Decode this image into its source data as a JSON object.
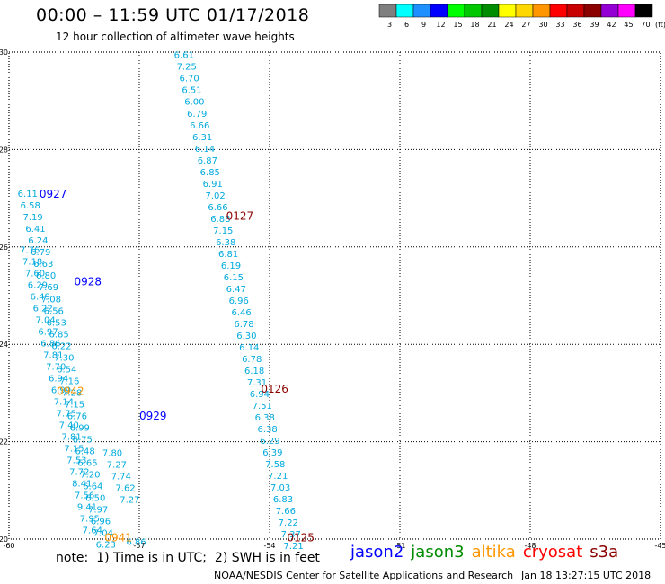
{
  "header": {
    "title": "00:00 – 11:59 UTC 01/17/2018",
    "subtitle": "12 hour collection of altimeter wave heights"
  },
  "colorbar": {
    "bins": [
      {
        "label": "3",
        "color": "#7f7f7f"
      },
      {
        "label": "6",
        "color": "#00ffff"
      },
      {
        "label": "9",
        "color": "#1e90ff"
      },
      {
        "label": "12",
        "color": "#0000ff"
      },
      {
        "label": "15",
        "color": "#00ff00"
      },
      {
        "label": "18",
        "color": "#00c800"
      },
      {
        "label": "21",
        "color": "#008c00"
      },
      {
        "label": "24",
        "color": "#ffff00"
      },
      {
        "label": "27",
        "color": "#ffd700"
      },
      {
        "label": "30",
        "color": "#ff9600"
      },
      {
        "label": "33",
        "color": "#ff0000"
      },
      {
        "label": "36",
        "color": "#c80000"
      },
      {
        "label": "39",
        "color": "#8b0000"
      },
      {
        "label": "42",
        "color": "#9400d3"
      },
      {
        "label": "45",
        "color": "#ff00ff"
      },
      {
        "label": "70",
        "color": "#000000"
      }
    ],
    "unit": "(ft)"
  },
  "satellites": [
    {
      "name": "jason2",
      "color": "#0000ff"
    },
    {
      "name": "jason3",
      "color": "#008c00"
    },
    {
      "name": "altika",
      "color": "#ff9600"
    },
    {
      "name": "cryosat",
      "color": "#ff0000"
    },
    {
      "name": "s3a",
      "color": "#8b0000"
    }
  ],
  "footer": {
    "note": "note:  1) Time is in UTC;  2) SWH is in feet",
    "credit": "NOAA/NESDIS Center for Satellite Applications and Research",
    "timestamp": "Jan 18 13:27:15 UTC 2018"
  },
  "chart_data": {
    "type": "scatter",
    "title": "00:00 – 11:59 UTC 01/17/2018",
    "subtitle": "12 hour collection of altimeter wave heights",
    "xlim": [
      -60,
      -45
    ],
    "ylim": [
      20,
      30
    ],
    "x_ticks": [
      -60,
      -57,
      -54,
      -51,
      -48,
      -45
    ],
    "y_ticks": [
      20,
      22,
      24,
      26,
      28,
      30
    ],
    "grid": true,
    "value_color": "#00aadd",
    "tracks": [
      {
        "label": "0125",
        "satellite": "s3a",
        "label_lon": -53.6,
        "label_lat": 20.05,
        "points": [
          {
            "lon": -56.2,
            "lat": 29.95,
            "swh": 6.61
          },
          {
            "lon": -56.14,
            "lat": 29.71,
            "swh": 7.25
          },
          {
            "lon": -56.08,
            "lat": 29.47,
            "swh": 6.7
          },
          {
            "lon": -56.02,
            "lat": 29.23,
            "swh": 6.51
          },
          {
            "lon": -55.96,
            "lat": 28.99,
            "swh": 6.0
          },
          {
            "lon": -55.9,
            "lat": 28.75,
            "swh": 6.79
          },
          {
            "lon": -55.84,
            "lat": 28.51,
            "swh": 6.66
          },
          {
            "lon": -55.78,
            "lat": 28.27,
            "swh": 6.31
          },
          {
            "lon": -55.72,
            "lat": 28.03,
            "swh": 6.14
          },
          {
            "lon": -55.66,
            "lat": 27.79,
            "swh": 6.87
          },
          {
            "lon": -55.6,
            "lat": 27.55,
            "swh": 6.85
          },
          {
            "lon": -55.54,
            "lat": 27.31,
            "swh": 6.91
          },
          {
            "lon": -55.48,
            "lat": 27.07,
            "swh": 7.02
          },
          {
            "lon": -55.42,
            "lat": 26.83,
            "swh": 6.66
          },
          {
            "lon": -55.36,
            "lat": 26.59,
            "swh": 6.88
          },
          {
            "lon": -55.3,
            "lat": 26.35,
            "swh": 7.15
          },
          {
            "lon": -55.24,
            "lat": 26.11,
            "swh": 6.38
          },
          {
            "lon": -55.18,
            "lat": 25.87,
            "swh": 6.81
          },
          {
            "lon": -55.12,
            "lat": 25.63,
            "swh": 6.19
          },
          {
            "lon": -55.06,
            "lat": 25.39,
            "swh": 6.15
          },
          {
            "lon": -55.0,
            "lat": 25.15,
            "swh": 6.47
          },
          {
            "lon": -54.94,
            "lat": 24.91,
            "swh": 6.96
          },
          {
            "lon": -54.88,
            "lat": 24.67,
            "swh": 6.46
          },
          {
            "lon": -54.82,
            "lat": 24.43,
            "swh": 6.78
          },
          {
            "lon": -54.76,
            "lat": 24.19,
            "swh": 6.3
          },
          {
            "lon": -54.7,
            "lat": 23.95,
            "swh": 6.14
          },
          {
            "lon": -54.64,
            "lat": 23.71,
            "swh": 6.78
          },
          {
            "lon": -54.58,
            "lat": 23.47,
            "swh": 6.18
          },
          {
            "lon": -54.52,
            "lat": 23.23,
            "swh": 7.31
          },
          {
            "lon": -54.46,
            "lat": 22.99,
            "swh": 6.94
          },
          {
            "lon": -54.4,
            "lat": 22.75,
            "swh": 7.51
          },
          {
            "lon": -54.34,
            "lat": 22.51,
            "swh": 6.38
          },
          {
            "lon": -54.28,
            "lat": 22.27,
            "swh": 6.38
          },
          {
            "lon": -54.22,
            "lat": 22.03,
            "swh": 6.29
          },
          {
            "lon": -54.16,
            "lat": 21.79,
            "swh": 6.39
          },
          {
            "lon": -54.1,
            "lat": 21.55,
            "swh": 7.58
          },
          {
            "lon": -54.04,
            "lat": 21.31,
            "swh": 7.21
          },
          {
            "lon": -53.98,
            "lat": 21.07,
            "swh": 7.03
          },
          {
            "lon": -53.92,
            "lat": 20.83,
            "swh": 6.83
          },
          {
            "lon": -53.86,
            "lat": 20.59,
            "swh": 7.66
          },
          {
            "lon": -53.8,
            "lat": 20.35,
            "swh": 7.22
          },
          {
            "lon": -53.74,
            "lat": 20.11,
            "swh": 7.37
          },
          {
            "lon": -53.68,
            "lat": 19.87,
            "swh": 7.21
          }
        ]
      },
      {
        "label": "0126",
        "satellite": "s3a",
        "label_lon": -54.2,
        "label_lat": 23.1,
        "points": []
      },
      {
        "label": "0127",
        "satellite": "s3a",
        "label_lon": -55.0,
        "label_lat": 26.65,
        "points": []
      },
      {
        "label": "0927",
        "satellite": "jason2",
        "label_lon": -59.3,
        "label_lat": 27.1,
        "points": [
          {
            "lon": -59.8,
            "lat": 27.1,
            "swh": 6.11
          },
          {
            "lon": -59.74,
            "lat": 26.86,
            "swh": 6.58
          },
          {
            "lon": -59.68,
            "lat": 26.62,
            "swh": 7.19
          },
          {
            "lon": -59.62,
            "lat": 26.38,
            "swh": 6.41
          },
          {
            "lon": -59.56,
            "lat": 26.14,
            "swh": 6.24
          },
          {
            "lon": -59.5,
            "lat": 25.9,
            "swh": 6.79
          },
          {
            "lon": -59.44,
            "lat": 25.66,
            "swh": 6.63
          },
          {
            "lon": -59.38,
            "lat": 25.42,
            "swh": 6.8
          },
          {
            "lon": -59.32,
            "lat": 25.18,
            "swh": 7.69
          },
          {
            "lon": -59.26,
            "lat": 24.94,
            "swh": 7.08
          },
          {
            "lon": -59.2,
            "lat": 24.7,
            "swh": 6.56
          },
          {
            "lon": -59.14,
            "lat": 24.46,
            "swh": 6.53
          },
          {
            "lon": -59.08,
            "lat": 24.22,
            "swh": 6.85
          },
          {
            "lon": -59.02,
            "lat": 23.98,
            "swh": 6.22
          },
          {
            "lon": -58.96,
            "lat": 23.74,
            "swh": 7.3
          },
          {
            "lon": -58.9,
            "lat": 23.5,
            "swh": 6.54
          },
          {
            "lon": -58.84,
            "lat": 23.26,
            "swh": 7.16
          },
          {
            "lon": -58.78,
            "lat": 23.02,
            "swh": 7.28
          },
          {
            "lon": -58.72,
            "lat": 22.78,
            "swh": 7.15
          },
          {
            "lon": -58.66,
            "lat": 22.54,
            "swh": 6.76
          },
          {
            "lon": -58.6,
            "lat": 22.3,
            "swh": 6.99
          },
          {
            "lon": -58.54,
            "lat": 22.06,
            "swh": 6.75
          },
          {
            "lon": -58.48,
            "lat": 21.82,
            "swh": 6.48
          },
          {
            "lon": -58.42,
            "lat": 21.58,
            "swh": 6.65
          },
          {
            "lon": -58.36,
            "lat": 21.34,
            "swh": 7.2
          },
          {
            "lon": -58.3,
            "lat": 21.1,
            "swh": 6.64
          },
          {
            "lon": -58.24,
            "lat": 20.86,
            "swh": 6.5
          },
          {
            "lon": -58.18,
            "lat": 20.62,
            "swh": 7.97
          },
          {
            "lon": -58.12,
            "lat": 20.38,
            "swh": 6.96
          },
          {
            "lon": -58.06,
            "lat": 20.14,
            "swh": 7.04
          },
          {
            "lon": -58.0,
            "lat": 19.9,
            "swh": 6.23
          }
        ]
      },
      {
        "label": "0928",
        "satellite": "jason2",
        "label_lon": -58.5,
        "label_lat": 25.3,
        "points": []
      },
      {
        "label": "0929",
        "satellite": "jason2",
        "label_lon": -57.0,
        "label_lat": 22.55,
        "points": []
      },
      {
        "label": "0942",
        "satellite": "altika",
        "label_lon": -58.9,
        "label_lat": 23.05,
        "points": [
          {
            "lon": -59.75,
            "lat": 25.95,
            "swh": 7.76
          },
          {
            "lon": -59.69,
            "lat": 25.71,
            "swh": 7.18
          },
          {
            "lon": -59.63,
            "lat": 25.47,
            "swh": 7.6
          },
          {
            "lon": -59.57,
            "lat": 25.23,
            "swh": 6.29
          },
          {
            "lon": -59.51,
            "lat": 24.99,
            "swh": 6.49
          },
          {
            "lon": -59.45,
            "lat": 24.75,
            "swh": 6.22
          },
          {
            "lon": -59.39,
            "lat": 24.51,
            "swh": 7.04
          },
          {
            "lon": -59.33,
            "lat": 24.27,
            "swh": 6.97
          },
          {
            "lon": -59.27,
            "lat": 24.03,
            "swh": 6.86
          },
          {
            "lon": -59.21,
            "lat": 23.79,
            "swh": 7.81
          },
          {
            "lon": -59.15,
            "lat": 23.55,
            "swh": 7.7
          },
          {
            "lon": -59.09,
            "lat": 23.31,
            "swh": 6.94
          },
          {
            "lon": -59.03,
            "lat": 23.07,
            "swh": 6.99
          },
          {
            "lon": -58.97,
            "lat": 22.83,
            "swh": 7.14
          },
          {
            "lon": -58.91,
            "lat": 22.59,
            "swh": 7.75
          },
          {
            "lon": -58.85,
            "lat": 22.35,
            "swh": 7.4
          },
          {
            "lon": -58.79,
            "lat": 22.11,
            "swh": 7.81
          },
          {
            "lon": -58.73,
            "lat": 21.87,
            "swh": 7.15
          },
          {
            "lon": -58.67,
            "lat": 21.63,
            "swh": 7.53
          },
          {
            "lon": -58.61,
            "lat": 21.39,
            "swh": 7.72
          },
          {
            "lon": -58.55,
            "lat": 21.15,
            "swh": 8.41
          },
          {
            "lon": -58.49,
            "lat": 20.91,
            "swh": 7.56
          },
          {
            "lon": -58.43,
            "lat": 20.67,
            "swh": 9.41
          },
          {
            "lon": -58.37,
            "lat": 20.43,
            "swh": 7.95
          },
          {
            "lon": -58.31,
            "lat": 20.19,
            "swh": 7.64
          }
        ]
      },
      {
        "label": "0941",
        "satellite": "altika",
        "label_lon": -57.8,
        "label_lat": 20.05,
        "points": [
          {
            "lon": -57.85,
            "lat": 21.78,
            "swh": 7.8
          },
          {
            "lon": -57.75,
            "lat": 21.54,
            "swh": 7.27
          },
          {
            "lon": -57.65,
            "lat": 21.3,
            "swh": 7.74
          },
          {
            "lon": -57.55,
            "lat": 21.06,
            "swh": 7.62
          },
          {
            "lon": -57.45,
            "lat": 20.82,
            "swh": 7.27
          },
          {
            "lon": -57.3,
            "lat": 19.95,
            "swh": 6.86
          }
        ]
      }
    ]
  }
}
